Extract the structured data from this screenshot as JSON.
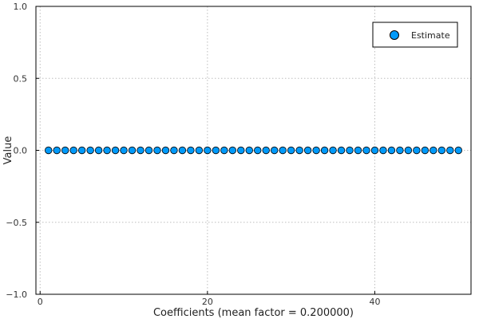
{
  "chart_data": {
    "type": "scatter",
    "title": "",
    "xlabel": "Coefficients (mean factor = 0.200000)",
    "ylabel": "Value",
    "xlim": [
      -0.5,
      51.5
    ],
    "ylim": [
      -1.0,
      1.0
    ],
    "x_ticks": [
      0,
      20,
      40
    ],
    "y_ticks": [
      1.0,
      0.5,
      0.0,
      -0.5,
      -1.0
    ],
    "x_tick_labels": [
      "0",
      "20",
      "40"
    ],
    "y_tick_labels": [
      "1.0",
      "0.5",
      "0.0",
      "−0.5",
      "−1.0"
    ],
    "grid": true,
    "legend_position": "top-right",
    "series": [
      {
        "name": "Estimate",
        "color": "#009AFA",
        "x": [
          1,
          2,
          3,
          4,
          5,
          6,
          7,
          8,
          9,
          10,
          11,
          12,
          13,
          14,
          15,
          16,
          17,
          18,
          19,
          20,
          21,
          22,
          23,
          24,
          25,
          26,
          27,
          28,
          29,
          30,
          31,
          32,
          33,
          34,
          35,
          36,
          37,
          38,
          39,
          40,
          41,
          42,
          43,
          44,
          45,
          46,
          47,
          48,
          49,
          50
        ],
        "y": [
          0,
          0,
          0,
          0,
          0,
          0,
          0,
          0,
          0,
          0,
          0,
          0,
          0,
          0,
          0,
          0,
          0,
          0,
          0,
          0,
          0,
          0,
          0,
          0,
          0,
          0,
          0,
          0,
          0,
          0,
          0,
          0,
          0,
          0,
          0,
          0,
          0,
          0,
          0,
          0,
          0,
          0,
          0,
          0,
          0,
          0,
          0,
          0,
          0,
          0
        ]
      }
    ]
  }
}
